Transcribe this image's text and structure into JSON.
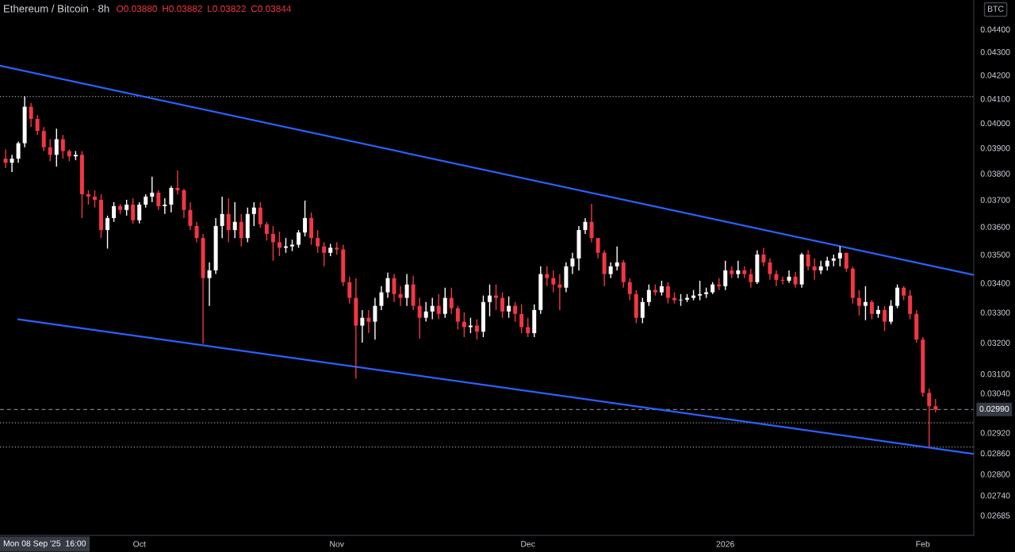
{
  "chart_data": {
    "type": "candlestick",
    "title": "Ethereum / Bitcoin · 8h",
    "annotations": [
      "O0.03880",
      "H0.03882",
      "L0.03822",
      "C0.03844",
      "Mon 08 Sep '25  16:00",
      "BTC"
    ],
    "x": [
      "2025-09-10",
      "2025-09-11",
      "2025-09-12",
      "2025-09-13",
      "2025-09-14",
      "2025-09-15",
      "2025-09-16",
      "2025-09-17",
      "2025-09-18",
      "2025-09-19",
      "2025-09-20",
      "2025-09-21",
      "2025-09-22",
      "2025-09-23",
      "2025-09-24",
      "2025-09-25",
      "2025-09-26",
      "2025-09-27",
      "2025-09-28",
      "2025-09-29",
      "2025-09-30",
      "2025-10-01",
      "2025-10-02",
      "2025-10-03",
      "2025-10-04",
      "2025-10-05",
      "2025-10-06",
      "2025-10-07",
      "2025-10-08",
      "2025-10-09",
      "2025-10-10",
      "2025-10-11",
      "2025-10-12",
      "2025-10-13",
      "2025-10-14",
      "2025-10-15",
      "2025-10-16",
      "2025-10-17",
      "2025-10-18",
      "2025-10-19",
      "2025-10-20",
      "2025-10-21",
      "2025-10-22",
      "2025-10-23",
      "2025-10-24",
      "2025-10-25",
      "2025-10-26",
      "2025-10-27",
      "2025-10-28",
      "2025-10-29",
      "2025-10-30",
      "2025-10-31",
      "2025-11-01",
      "2025-11-02",
      "2025-11-03",
      "2025-11-04",
      "2025-11-05",
      "2025-11-06",
      "2025-11-07",
      "2025-11-08",
      "2025-11-09",
      "2025-11-10",
      "2025-11-11",
      "2025-11-12",
      "2025-11-13",
      "2025-11-14",
      "2025-11-15",
      "2025-11-16",
      "2025-11-17",
      "2025-11-18",
      "2025-11-19",
      "2025-11-20",
      "2025-11-21",
      "2025-11-22",
      "2025-11-23",
      "2025-11-24",
      "2025-11-25",
      "2025-11-26",
      "2025-11-27",
      "2025-11-28",
      "2025-11-29",
      "2025-11-30",
      "2025-12-01",
      "2025-12-02",
      "2025-12-03",
      "2025-12-04",
      "2025-12-05",
      "2025-12-06",
      "2025-12-07",
      "2025-12-08",
      "2025-12-09",
      "2025-12-10",
      "2025-12-11",
      "2025-12-12",
      "2025-12-13",
      "2025-12-14",
      "2025-12-15",
      "2025-12-16",
      "2025-12-17",
      "2025-12-18",
      "2025-12-19",
      "2025-12-20",
      "2025-12-21",
      "2025-12-22",
      "2025-12-23",
      "2025-12-24",
      "2025-12-25",
      "2025-12-26",
      "2025-12-27",
      "2025-12-28",
      "2025-12-29",
      "2025-12-30",
      "2025-12-31",
      "2026-01-01",
      "2026-01-02",
      "2026-01-03",
      "2026-01-04",
      "2026-01-05",
      "2026-01-06",
      "2026-01-07",
      "2026-01-08",
      "2026-01-09",
      "2026-01-10",
      "2026-01-11",
      "2026-01-12",
      "2026-01-13",
      "2026-01-14",
      "2026-01-15",
      "2026-01-16",
      "2026-01-17",
      "2026-01-18",
      "2026-01-19",
      "2026-01-20",
      "2026-01-21",
      "2026-01-22",
      "2026-01-23",
      "2026-01-24",
      "2026-01-25",
      "2026-01-26",
      "2026-01-27",
      "2026-01-28",
      "2026-01-29",
      "2026-01-30",
      "2026-01-31",
      "2026-02-01",
      "2026-02-02",
      "2026-02-03"
    ],
    "ohlc": [
      [
        0.03858,
        0.03894,
        0.03821,
        0.03842
      ],
      [
        0.03842,
        0.03873,
        0.03806,
        0.03858
      ],
      [
        0.03858,
        0.03926,
        0.03842,
        0.03919
      ],
      [
        0.03919,
        0.0411,
        0.03903,
        0.04067
      ],
      [
        0.04067,
        0.04083,
        0.03984,
        0.04017
      ],
      [
        0.04017,
        0.04033,
        0.03952,
        0.03968
      ],
      [
        0.03968,
        0.03984,
        0.03888,
        0.03903
      ],
      [
        0.03903,
        0.03935,
        0.03848,
        0.03873
      ],
      [
        0.03873,
        0.03977,
        0.03827,
        0.03935
      ],
      [
        0.03935,
        0.03952,
        0.03858,
        0.03888
      ],
      [
        0.03888,
        0.03894,
        0.03848,
        0.03867
      ],
      [
        0.03867,
        0.03888,
        0.03852,
        0.03873
      ],
      [
        0.03873,
        0.03888,
        0.03632,
        0.03721
      ],
      [
        0.03721,
        0.03736,
        0.03682,
        0.03712
      ],
      [
        0.03712,
        0.03736,
        0.03671,
        0.037
      ],
      [
        0.037,
        0.03721,
        0.03559,
        0.03588
      ],
      [
        0.03588,
        0.03641,
        0.03521,
        0.03632
      ],
      [
        0.03632,
        0.03691,
        0.03618,
        0.03676
      ],
      [
        0.03676,
        0.03685,
        0.03647,
        0.03662
      ],
      [
        0.03662,
        0.037,
        0.03641,
        0.03682
      ],
      [
        0.03682,
        0.03706,
        0.03612,
        0.03624
      ],
      [
        0.03624,
        0.03691,
        0.03612,
        0.03682
      ],
      [
        0.03682,
        0.03721,
        0.03671,
        0.03712
      ],
      [
        0.03712,
        0.03788,
        0.03691,
        0.03727
      ],
      [
        0.03727,
        0.03736,
        0.03662,
        0.03676
      ],
      [
        0.03676,
        0.03706,
        0.03647,
        0.03682
      ],
      [
        0.03682,
        0.03752,
        0.03653,
        0.03745
      ],
      [
        0.03745,
        0.03812,
        0.03721,
        0.03736
      ],
      [
        0.03736,
        0.03742,
        0.03632,
        0.03662
      ],
      [
        0.03662,
        0.03691,
        0.03588,
        0.03603
      ],
      [
        0.03603,
        0.03618,
        0.03544,
        0.03559
      ],
      [
        0.03559,
        0.03574,
        0.03197,
        0.03417
      ],
      [
        0.03417,
        0.03472,
        0.03322,
        0.03444
      ],
      [
        0.03444,
        0.03632,
        0.03431,
        0.03603
      ],
      [
        0.03603,
        0.03712,
        0.03559,
        0.03647
      ],
      [
        0.03647,
        0.03706,
        0.03544,
        0.03588
      ],
      [
        0.03588,
        0.03691,
        0.03559,
        0.03618
      ],
      [
        0.03618,
        0.03647,
        0.03529,
        0.03559
      ],
      [
        0.03559,
        0.03671,
        0.03544,
        0.03647
      ],
      [
        0.03647,
        0.03691,
        0.03603,
        0.03671
      ],
      [
        0.03671,
        0.03691,
        0.03597,
        0.03609
      ],
      [
        0.03609,
        0.03618,
        0.0355,
        0.03574
      ],
      [
        0.03574,
        0.03603,
        0.03478,
        0.03544
      ],
      [
        0.03544,
        0.03582,
        0.03494,
        0.03524
      ],
      [
        0.03524,
        0.03559,
        0.03506,
        0.03529
      ],
      [
        0.03529,
        0.03553,
        0.03512,
        0.03535
      ],
      [
        0.03535,
        0.03588,
        0.03524,
        0.03579
      ],
      [
        0.03579,
        0.03697,
        0.03565,
        0.03632
      ],
      [
        0.03632,
        0.03653,
        0.03535,
        0.03559
      ],
      [
        0.03559,
        0.03588,
        0.03506,
        0.03529
      ],
      [
        0.03529,
        0.03544,
        0.03458,
        0.03506
      ],
      [
        0.03506,
        0.03538,
        0.03494,
        0.03524
      ],
      [
        0.03524,
        0.03544,
        0.035,
        0.03518
      ],
      [
        0.03518,
        0.03535,
        0.03389,
        0.03403
      ],
      [
        0.03403,
        0.03422,
        0.0333,
        0.03349
      ],
      [
        0.03349,
        0.03417,
        0.03085,
        0.03256
      ],
      [
        0.03256,
        0.03308,
        0.032,
        0.03282
      ],
      [
        0.03282,
        0.03308,
        0.03231,
        0.03269
      ],
      [
        0.03269,
        0.03349,
        0.0321,
        0.03322
      ],
      [
        0.03322,
        0.03389,
        0.03308,
        0.03368
      ],
      [
        0.03368,
        0.03436,
        0.03349,
        0.03417
      ],
      [
        0.03417,
        0.03431,
        0.03335,
        0.03362
      ],
      [
        0.03362,
        0.03389,
        0.03322,
        0.03349
      ],
      [
        0.03349,
        0.03431,
        0.03322,
        0.03395
      ],
      [
        0.03395,
        0.03425,
        0.03308,
        0.03322
      ],
      [
        0.03322,
        0.03349,
        0.03213,
        0.03282
      ],
      [
        0.03282,
        0.03335,
        0.03269,
        0.03303
      ],
      [
        0.03303,
        0.03349,
        0.03277,
        0.03322
      ],
      [
        0.03322,
        0.03362,
        0.03277,
        0.03295
      ],
      [
        0.03295,
        0.03384,
        0.03282,
        0.03349
      ],
      [
        0.03349,
        0.03384,
        0.03295,
        0.03314
      ],
      [
        0.03314,
        0.03322,
        0.03243,
        0.03269
      ],
      [
        0.03269,
        0.033,
        0.03218,
        0.03251
      ],
      [
        0.03251,
        0.03282,
        0.03231,
        0.03256
      ],
      [
        0.03256,
        0.03277,
        0.0321,
        0.03236
      ],
      [
        0.03236,
        0.03357,
        0.03218,
        0.03335
      ],
      [
        0.03335,
        0.03395,
        0.03287,
        0.03357
      ],
      [
        0.03357,
        0.03395,
        0.03308,
        0.03349
      ],
      [
        0.03349,
        0.03368,
        0.03282,
        0.03303
      ],
      [
        0.03303,
        0.03354,
        0.03282,
        0.03322
      ],
      [
        0.03322,
        0.03335,
        0.03269,
        0.03295
      ],
      [
        0.03295,
        0.03327,
        0.03231,
        0.03251
      ],
      [
        0.03251,
        0.03282,
        0.03218,
        0.03231
      ],
      [
        0.03231,
        0.03327,
        0.03218,
        0.03308
      ],
      [
        0.03308,
        0.03458,
        0.03295,
        0.03431
      ],
      [
        0.03431,
        0.03458,
        0.03389,
        0.03417
      ],
      [
        0.03417,
        0.03444,
        0.03368,
        0.03395
      ],
      [
        0.03395,
        0.03431,
        0.03308,
        0.03384
      ],
      [
        0.03384,
        0.03472,
        0.03368,
        0.03458
      ],
      [
        0.03458,
        0.03506,
        0.03431,
        0.03486
      ],
      [
        0.03486,
        0.03603,
        0.03444,
        0.03588
      ],
      [
        0.03588,
        0.03632,
        0.03574,
        0.03618
      ],
      [
        0.03618,
        0.03685,
        0.03544,
        0.03559
      ],
      [
        0.03559,
        0.03559,
        0.03486,
        0.03506
      ],
      [
        0.03506,
        0.03515,
        0.03389,
        0.03431
      ],
      [
        0.03431,
        0.03472,
        0.03417,
        0.03458
      ],
      [
        0.03458,
        0.03529,
        0.03444,
        0.03472
      ],
      [
        0.03472,
        0.03481,
        0.03384,
        0.03403
      ],
      [
        0.03403,
        0.03417,
        0.03341,
        0.03362
      ],
      [
        0.03362,
        0.03376,
        0.03264,
        0.03282
      ],
      [
        0.03282,
        0.03349,
        0.03264,
        0.03335
      ],
      [
        0.03335,
        0.03395,
        0.03322,
        0.03376
      ],
      [
        0.03376,
        0.03395,
        0.03357,
        0.03368
      ],
      [
        0.03368,
        0.03408,
        0.03357,
        0.03389
      ],
      [
        0.03389,
        0.03403,
        0.0333,
        0.03349
      ],
      [
        0.03349,
        0.03368,
        0.0333,
        0.03341
      ],
      [
        0.03341,
        0.03362,
        0.03322,
        0.03343
      ],
      [
        0.03343,
        0.03362,
        0.03335,
        0.03349
      ],
      [
        0.03349,
        0.03376,
        0.03341,
        0.03357
      ],
      [
        0.03357,
        0.03408,
        0.03341,
        0.03362
      ],
      [
        0.03362,
        0.03384,
        0.03349,
        0.03368
      ],
      [
        0.03368,
        0.03403,
        0.03362,
        0.03395
      ],
      [
        0.03395,
        0.03417,
        0.03376,
        0.03389
      ],
      [
        0.03389,
        0.03478,
        0.03376,
        0.03444
      ],
      [
        0.03444,
        0.03458,
        0.03417,
        0.03431
      ],
      [
        0.03431,
        0.03478,
        0.03417,
        0.03444
      ],
      [
        0.03444,
        0.03458,
        0.03417,
        0.03431
      ],
      [
        0.03431,
        0.0345,
        0.03384,
        0.03403
      ],
      [
        0.03403,
        0.03515,
        0.03397,
        0.035
      ],
      [
        0.035,
        0.03524,
        0.03458,
        0.03472
      ],
      [
        0.03472,
        0.03486,
        0.03411,
        0.03431
      ],
      [
        0.03431,
        0.03444,
        0.03389,
        0.03411
      ],
      [
        0.03411,
        0.03422,
        0.03395,
        0.03408
      ],
      [
        0.03408,
        0.03444,
        0.034,
        0.03422
      ],
      [
        0.03422,
        0.03439,
        0.03384,
        0.03395
      ],
      [
        0.03395,
        0.03506,
        0.03384,
        0.035
      ],
      [
        0.035,
        0.03515,
        0.03444,
        0.03458
      ],
      [
        0.03458,
        0.03486,
        0.03411,
        0.03444
      ],
      [
        0.03444,
        0.03478,
        0.03431,
        0.03458
      ],
      [
        0.03458,
        0.03492,
        0.03444,
        0.03478
      ],
      [
        0.03478,
        0.035,
        0.03458,
        0.03486
      ],
      [
        0.03486,
        0.03529,
        0.03458,
        0.03506
      ],
      [
        0.03506,
        0.03506,
        0.03439,
        0.0345
      ],
      [
        0.0345,
        0.03458,
        0.0333,
        0.03349
      ],
      [
        0.03349,
        0.03376,
        0.0329,
        0.03322
      ],
      [
        0.03322,
        0.03389,
        0.03274,
        0.03335
      ],
      [
        0.03335,
        0.03341,
        0.03277,
        0.03295
      ],
      [
        0.03295,
        0.03322,
        0.03282,
        0.03308
      ],
      [
        0.03308,
        0.03322,
        0.03238,
        0.03269
      ],
      [
        0.03269,
        0.03341,
        0.03261,
        0.03322
      ],
      [
        0.03322,
        0.03395,
        0.03314,
        0.03384
      ],
      [
        0.03384,
        0.03389,
        0.03341,
        0.03357
      ],
      [
        0.03357,
        0.03376,
        0.03277,
        0.03295
      ],
      [
        0.03295,
        0.03308,
        0.032,
        0.0321
      ],
      [
        0.0321,
        0.03218,
        0.03029,
        0.03041
      ],
      [
        0.03041,
        0.03054,
        0.02878,
        0.03
      ],
      [
        0.03,
        0.03022,
        0.02981,
        0.0299
      ]
    ],
    "colors": [
      "#f23645",
      "#ffffff",
      "#ffffff",
      "#ffffff",
      "#f23645",
      "#f23645",
      "#f23645",
      "#f23645",
      "#ffffff",
      "#f23645",
      "#f23645",
      "#ffffff",
      "#f23645",
      "#f23645",
      "#f23645",
      "#f23645",
      "#ffffff",
      "#ffffff",
      "#f23645",
      "#ffffff",
      "#f23645",
      "#ffffff",
      "#ffffff",
      "#ffffff",
      "#f23645",
      "#ffffff",
      "#ffffff",
      "#f23645",
      "#f23645",
      "#f23645",
      "#f23645",
      "#f23645",
      "#ffffff",
      "#ffffff",
      "#ffffff",
      "#f23645",
      "#ffffff",
      "#f23645",
      "#ffffff",
      "#ffffff",
      "#f23645",
      "#f23645",
      "#f23645",
      "#f23645",
      "#ffffff",
      "#ffffff",
      "#ffffff",
      "#ffffff",
      "#f23645",
      "#f23645",
      "#f23645",
      "#ffffff",
      "#f23645",
      "#f23645",
      "#f23645",
      "#f23645",
      "#ffffff",
      "#f23645",
      "#ffffff",
      "#ffffff",
      "#ffffff",
      "#f23645",
      "#f23645",
      "#ffffff",
      "#f23645",
      "#f23645",
      "#ffffff",
      "#ffffff",
      "#f23645",
      "#ffffff",
      "#f23645",
      "#f23645",
      "#f23645",
      "#ffffff",
      "#f23645",
      "#ffffff",
      "#ffffff",
      "#f23645",
      "#f23645",
      "#ffffff",
      "#f23645",
      "#f23645",
      "#f23645",
      "#ffffff",
      "#ffffff",
      "#f23645",
      "#f23645",
      "#f23645",
      "#ffffff",
      "#ffffff",
      "#ffffff",
      "#ffffff",
      "#f23645",
      "#f23645",
      "#f23645",
      "#ffffff",
      "#ffffff",
      "#f23645",
      "#f23645",
      "#f23645",
      "#ffffff",
      "#ffffff",
      "#f23645",
      "#ffffff",
      "#f23645",
      "#f23645",
      "#ffffff",
      "#ffffff",
      "#ffffff",
      "#ffffff",
      "#ffffff",
      "#ffffff",
      "#f23645",
      "#ffffff",
      "#f23645",
      "#ffffff",
      "#f23645",
      "#f23645",
      "#ffffff",
      "#f23645",
      "#f23645",
      "#f23645",
      "#f23645",
      "#ffffff",
      "#f23645",
      "#ffffff",
      "#f23645",
      "#f23645",
      "#ffffff",
      "#ffffff",
      "#ffffff",
      "#ffffff",
      "#f23645",
      "#f23645",
      "#f23645",
      "#ffffff",
      "#f23645",
      "#ffffff",
      "#f23645",
      "#ffffff",
      "#ffffff",
      "#f23645",
      "#f23645",
      "#f23645",
      "#f23645",
      "#f23645",
      "#f23645"
    ],
    "series": [
      {
        "type": "line",
        "x": [
          "2025-09-09T03:00",
          "2026-02-09"
        ],
        "values": [
          0.0424,
          0.03428
        ],
        "color": "#2962ff"
      },
      {
        "type": "line",
        "x": [
          "2025-09-12",
          "2026-02-09"
        ],
        "values": [
          0.03277,
          0.02858
        ],
        "color": "#2962ff"
      }
    ],
    "ref_lines": [
      {
        "axis": "y",
        "value": 0.0411,
        "line_style": "dotted",
        "color": "#9598a1"
      },
      {
        "axis": "y",
        "value": 0.0299,
        "line_style": "dashed",
        "color": "#787b86",
        "label": "0.02990"
      },
      {
        "axis": "y",
        "value": 0.0295,
        "line_style": "dotted",
        "color": "#9598a1"
      },
      {
        "axis": "y",
        "value": 0.02878,
        "line_style": "dotted",
        "color": "#9598a1"
      }
    ],
    "log": true,
    "xlim": [
      "2025-09-09T03:00",
      "2026-02-09"
    ],
    "xticks": [
      {
        "value": "2025-10-01",
        "label": "Oct"
      },
      {
        "value": "2025-11-01",
        "label": "Nov"
      },
      {
        "value": "2025-12-01",
        "label": "Dec"
      },
      {
        "value": "2026-01-01",
        "label": "2026"
      },
      {
        "value": "2026-02-01",
        "label": "Feb"
      }
    ],
    "ylim": [
      0.02631,
      0.04533
    ],
    "yticks": [
      {
        "value": 0.044,
        "label": "0.04400"
      },
      {
        "value": 0.043,
        "label": "0.04300"
      },
      {
        "value": 0.042,
        "label": "0.04200"
      },
      {
        "value": 0.041,
        "label": "0.04100"
      },
      {
        "value": 0.04,
        "label": "0.04000"
      },
      {
        "value": 0.039,
        "label": "0.03900"
      },
      {
        "value": 0.038,
        "label": "0.03800"
      },
      {
        "value": 0.037,
        "label": "0.03700"
      },
      {
        "value": 0.036,
        "label": "0.03600"
      },
      {
        "value": 0.035,
        "label": "0.03500"
      },
      {
        "value": 0.034,
        "label": "0.03400"
      },
      {
        "value": 0.033,
        "label": "0.03300"
      },
      {
        "value": 0.032,
        "label": "0.03200"
      },
      {
        "value": 0.031,
        "label": "0.03100"
      },
      {
        "value": 0.0304,
        "label": "0.03040"
      },
      {
        "value": 0.0292,
        "label": "0.02920"
      },
      {
        "value": 0.0286,
        "label": "0.02860"
      },
      {
        "value": 0.028,
        "label": "0.02800"
      },
      {
        "value": 0.0274,
        "label": "0.02740"
      },
      {
        "value": 0.02685,
        "label": "0.02685"
      }
    ]
  }
}
